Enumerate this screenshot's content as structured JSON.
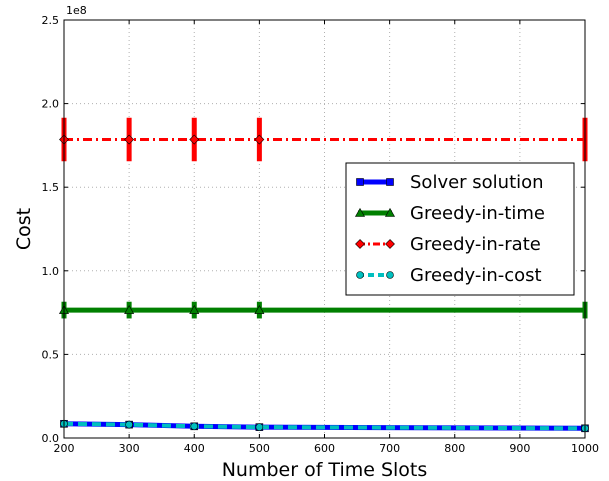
{
  "chart_data": {
    "type": "line",
    "title": "",
    "xlabel": "Number of Time Slots",
    "ylabel": "Cost",
    "y_scale_note": "1e8",
    "x": [
      200,
      300,
      400,
      500,
      1000
    ],
    "xlim": [
      200,
      1000
    ],
    "ylim": [
      0,
      2.5
    ],
    "x_ticks": [
      "200",
      "300",
      "400",
      "500",
      "600",
      "700",
      "800",
      "900",
      "1000"
    ],
    "y_ticks": [
      "0.0",
      "0.5",
      "1.0",
      "1.5",
      "2.0",
      "2.5"
    ],
    "grid": true,
    "legend_position": "center-right",
    "series": [
      {
        "name": "Solver solution",
        "values": [
          0.085,
          0.08,
          0.07,
          0.065,
          0.058
        ],
        "color": "#0000ff",
        "style": "solid",
        "marker": "square",
        "error": [
          0.004,
          0.004,
          0.004,
          0.004,
          0.004
        ]
      },
      {
        "name": "Greedy-in-time",
        "values": [
          0.765,
          0.765,
          0.765,
          0.765,
          0.765
        ],
        "color": "#008000",
        "style": "solid",
        "marker": "triangle",
        "error": [
          0.05,
          0.05,
          0.05,
          0.05,
          0.05
        ]
      },
      {
        "name": "Greedy-in-rate",
        "values": [
          1.785,
          1.785,
          1.785,
          1.785,
          1.785
        ],
        "color": "#ff0000",
        "style": "dashdot",
        "marker": "diamond",
        "error": [
          0.13,
          0.13,
          0.13,
          0.13,
          0.13
        ]
      },
      {
        "name": "Greedy-in-cost",
        "values": [
          0.085,
          0.08,
          0.07,
          0.065,
          0.058
        ],
        "color": "#00bfbf",
        "style": "dashed",
        "marker": "circle",
        "error": [
          0.004,
          0.004,
          0.004,
          0.004,
          0.004
        ]
      }
    ]
  }
}
